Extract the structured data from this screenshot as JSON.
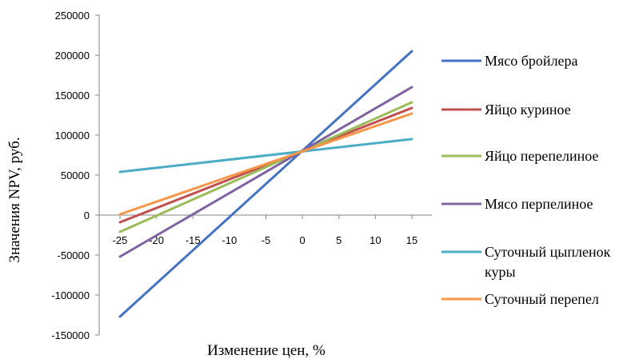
{
  "chart_data": {
    "type": "line",
    "title": "",
    "xlabel": "Изменение цен, %",
    "ylabel": "Значения NPV, руб.",
    "x": [
      -25,
      15
    ],
    "x_ticks": [
      "-25",
      "-20",
      "-15",
      "-10",
      "-5",
      "0",
      "5",
      "10",
      "15"
    ],
    "y_ticks": [
      "250000",
      "200000",
      "150000",
      "100000",
      "50000",
      "0",
      "-50000",
      "-100000",
      "-150000"
    ],
    "ylim": [
      -150000,
      250000
    ],
    "xlim": [
      -25,
      15
    ],
    "grid": false,
    "legend_position": "right",
    "series": [
      {
        "name": "Мясо бройлера",
        "color": "#4472C4",
        "values": [
          -127000,
          205000
        ]
      },
      {
        "name": "Яйцо куриное",
        "color": "#C0504D",
        "values": [
          -9000,
          134000
        ]
      },
      {
        "name": "Яйцо перепелиное",
        "color": "#9BBB59",
        "values": [
          -21000,
          141000
        ]
      },
      {
        "name": "Мясо перпелиное",
        "color": "#8064A2",
        "values": [
          -52000,
          160000
        ]
      },
      {
        "name": "Суточный цыпленок куры",
        "legend_lines": [
          "Суточный цыпленок",
          "куры"
        ],
        "color": "#4BACC6",
        "values": [
          54000,
          95000
        ]
      },
      {
        "name": "Суточный перепел",
        "color": "#F79646",
        "values": [
          1000,
          127000
        ]
      }
    ]
  }
}
